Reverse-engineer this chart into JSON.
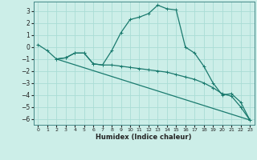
{
  "xlabel": "Humidex (Indice chaleur)",
  "bg_color": "#cceee8",
  "grid_color": "#aaddd6",
  "line_color": "#1a7a6e",
  "xlim": [
    -0.5,
    23.5
  ],
  "ylim": [
    -6.5,
    3.8
  ],
  "yticks": [
    3,
    2,
    1,
    0,
    -1,
    -2,
    -3,
    -4,
    -5,
    -6
  ],
  "xticks": [
    0,
    1,
    2,
    3,
    4,
    5,
    6,
    7,
    8,
    9,
    10,
    11,
    12,
    13,
    14,
    15,
    16,
    17,
    18,
    19,
    20,
    21,
    22,
    23
  ],
  "line1_x": [
    0,
    1,
    2,
    3,
    4,
    5,
    6,
    7,
    8,
    9,
    10,
    11,
    12,
    13,
    14,
    15,
    16,
    17,
    18,
    19,
    20,
    21,
    22,
    23
  ],
  "line1_y": [
    0.2,
    -0.3,
    -1.0,
    -0.9,
    -0.5,
    -0.5,
    -1.4,
    -1.5,
    -0.3,
    1.2,
    2.3,
    2.5,
    2.8,
    3.5,
    3.2,
    3.1,
    0.0,
    -0.5,
    -1.6,
    -3.0,
    -4.0,
    -3.9,
    -4.6,
    -6.1
  ],
  "line2_x": [
    2,
    3,
    4,
    5,
    6,
    7,
    8,
    9,
    10,
    11,
    12,
    13,
    14,
    15,
    16,
    17,
    18,
    19,
    20,
    21,
    22,
    23
  ],
  "line2_y": [
    -1.0,
    -0.9,
    -0.5,
    -0.5,
    -1.4,
    -1.5,
    -1.5,
    -1.6,
    -1.7,
    -1.8,
    -1.9,
    -2.0,
    -2.1,
    -2.3,
    -2.5,
    -2.7,
    -3.0,
    -3.4,
    -3.9,
    -4.1,
    -5.0,
    -6.1
  ],
  "line3_x": [
    2,
    23
  ],
  "line3_y": [
    -1.0,
    -6.1
  ],
  "marker_size": 3.0,
  "linewidth": 0.9
}
